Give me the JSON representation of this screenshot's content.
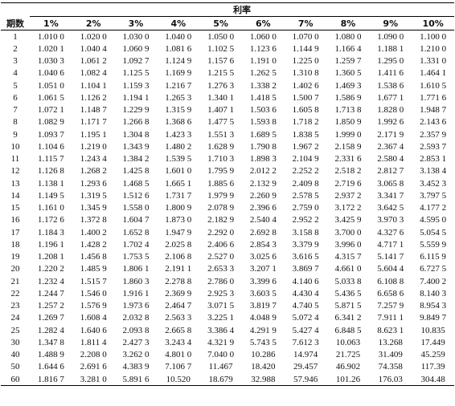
{
  "table": {
    "group_header": "利率",
    "period_header": "期数",
    "columns": [
      "1%",
      "2%",
      "3%",
      "4%",
      "5%",
      "6%",
      "7%",
      "8%",
      "9%",
      "10%"
    ],
    "rows": [
      [
        "1",
        "1.010 0",
        "1.020 0",
        "1.030 0",
        "1.040 0",
        "1.050 0",
        "1.060 0",
        "1.070 0",
        "1.080 0",
        "1.090 0",
        "1.100 0"
      ],
      [
        "2",
        "1.020 1",
        "1.040 4",
        "1.060 9",
        "1.081 6",
        "1.102 5",
        "1.123 6",
        "1.144 9",
        "1.166 4",
        "1.188 1",
        "1.210 0"
      ],
      [
        "3",
        "1.030 3",
        "1.061 2",
        "1.092 7",
        "1.124 9",
        "1.157 6",
        "1.191 0",
        "1.225 0",
        "1.259 7",
        "1.295 0",
        "1.331 0"
      ],
      [
        "4",
        "1.040 6",
        "1.082 4",
        "1.125 5",
        "1.169 9",
        "1.215 5",
        "1.262 5",
        "1.310 8",
        "1.360 5",
        "1.411 6",
        "1.464 1"
      ],
      [
        "5",
        "1.051 0",
        "1.104 1",
        "1.159 3",
        "1.216 7",
        "1.276 3",
        "1.338 2",
        "1.402 6",
        "1.469 3",
        "1.538 6",
        "1.610 5"
      ],
      [
        "6",
        "1.061 5",
        "1.126 2",
        "1.194 1",
        "1.265 3",
        "1.340 1",
        "1.418 5",
        "1.500 7",
        "1.586 9",
        "1.677 1",
        "1.771 6"
      ],
      [
        "7",
        "1.072 1",
        "1.148 7",
        "1.229 9",
        "1.315 9",
        "1.407 1",
        "1.503 6",
        "1.605 8",
        "1.713 8",
        "1.828 0",
        "1.948 7"
      ],
      [
        "8",
        "1.082 9",
        "1.171 7",
        "1.266 8",
        "1.368 6",
        "1.477 5",
        "1.593 8",
        "1.718 2",
        "1.850 9",
        "1.992 6",
        "2.143 6"
      ],
      [
        "9",
        "1.093 7",
        "1.195 1",
        "1.304 8",
        "1.423 3",
        "1.551 3",
        "1.689 5",
        "1.838 5",
        "1.999 0",
        "2.171 9",
        "2.357 9"
      ],
      [
        "10",
        "1.104 6",
        "1.219 0",
        "1.343 9",
        "1.480 2",
        "1.628 9",
        "1.790 8",
        "1.967 2",
        "2.158 9",
        "2.367 4",
        "2.593 7"
      ],
      [
        "11",
        "1.115 7",
        "1.243 4",
        "1.384 2",
        "1.539 5",
        "1.710 3",
        "1.898 3",
        "2.104 9",
        "2.331 6",
        "2.580 4",
        "2.853 1"
      ],
      [
        "12",
        "1.126 8",
        "1.268 2",
        "1.425 8",
        "1.601 0",
        "1.795 9",
        "2.012 2",
        "2.252 2",
        "2.518 2",
        "2.812 7",
        "3.138 4"
      ],
      [
        "13",
        "1.138 1",
        "1.293 6",
        "1.468 5",
        "1.665 1",
        "1.885 6",
        "2.132 9",
        "2.409 8",
        "2.719 6",
        "3.065 8",
        "3.452 3"
      ],
      [
        "14",
        "1.149 5",
        "1.319 5",
        "1.512 6",
        "1.731 7",
        "1.979 9",
        "2.260 9",
        "2.578 5",
        "2.937 2",
        "3.341 7",
        "3.797 5"
      ],
      [
        "15",
        "1.161 0",
        "1.345 9",
        "1.558 0",
        "1.800 9",
        "2.078 9",
        "2.396 6",
        "2.759 0",
        "3.172 2",
        "3.642 5",
        "4.177 2"
      ],
      [
        "16",
        "1.172 6",
        "1.372 8",
        "1.604 7",
        "1.873 0",
        "2.182 9",
        "2.540 4",
        "2.952 2",
        "3.425 9",
        "3.970 3",
        "4.595 0"
      ],
      [
        "17",
        "1.184 3",
        "1.400 2",
        "1.652 8",
        "1.947 9",
        "2.292 0",
        "2.692 8",
        "3.158 8",
        "3.700 0",
        "4.327 6",
        "5.054 5"
      ],
      [
        "18",
        "1.196 1",
        "1.428 2",
        "1.702 4",
        "2.025 8",
        "2.406 6",
        "2.854 3",
        "3.379 9",
        "3.996 0",
        "4.717 1",
        "5.559 9"
      ],
      [
        "19",
        "1.208 1",
        "1.456 8",
        "1.753 5",
        "2.106 8",
        "2.527 0",
        "3.025 6",
        "3.616 5",
        "4.315 7",
        "5.141 7",
        "6.115 9"
      ],
      [
        "20",
        "1.220 2",
        "1.485 9",
        "1.806 1",
        "2.191 1",
        "2.653 3",
        "3.207 1",
        "3.869 7",
        "4.661 0",
        "5.604 4",
        "6.727 5"
      ],
      [
        "21",
        "1.232 4",
        "1.515 7",
        "1.860 3",
        "2.278 8",
        "2.786 0",
        "3.399 6",
        "4.140 6",
        "5.033 8",
        "6.108 8",
        "7.400 2"
      ],
      [
        "22",
        "1.244 7",
        "1.546 0",
        "1.916 1",
        "2.369 9",
        "2.925 3",
        "3.603 5",
        "4.430 4",
        "5.436 5",
        "6.658 6",
        "8.140 3"
      ],
      [
        "23",
        "1.257 2",
        "1.576 9",
        "1.973 6",
        "2.464 7",
        "3.071 5",
        "3.819 7",
        "4.740 5",
        "5.871 5",
        "7.257 9",
        "8.954 3"
      ],
      [
        "24",
        "1.269 7",
        "1.608 4",
        "2.032 8",
        "2.563 3",
        "3.225 1",
        "4.048 9",
        "5.072 4",
        "6.341 2",
        "7.911 1",
        "9.849 7"
      ],
      [
        "25",
        "1.282 4",
        "1.640 6",
        "2.093 8",
        "2.665 8",
        "3.386 4",
        "4.291 9",
        "5.427 4",
        "6.848 5",
        "8.623 1",
        "10.835"
      ],
      [
        "30",
        "1.347 8",
        "1.811 4",
        "2.427 3",
        "3.243 4",
        "4.321 9",
        "5.743 5",
        "7.612 3",
        "10.063",
        "13.268",
        "17.449"
      ],
      [
        "40",
        "1.488 9",
        "2.208 0",
        "3.262 0",
        "4.801 0",
        "7.040 0",
        "10.286",
        "14.974",
        "21.725",
        "31.409",
        "45.259"
      ],
      [
        "50",
        "1.644 6",
        "2.691 6",
        "4.383 9",
        "7.106 7",
        "11.467",
        "18.420",
        "29.457",
        "46.902",
        "74.358",
        "117.39"
      ],
      [
        "60",
        "1.816 7",
        "3.281 0",
        "5.891 6",
        "10.520",
        "18.679",
        "32.988",
        "57.946",
        "101.26",
        "176.03",
        "304.48"
      ]
    ]
  }
}
